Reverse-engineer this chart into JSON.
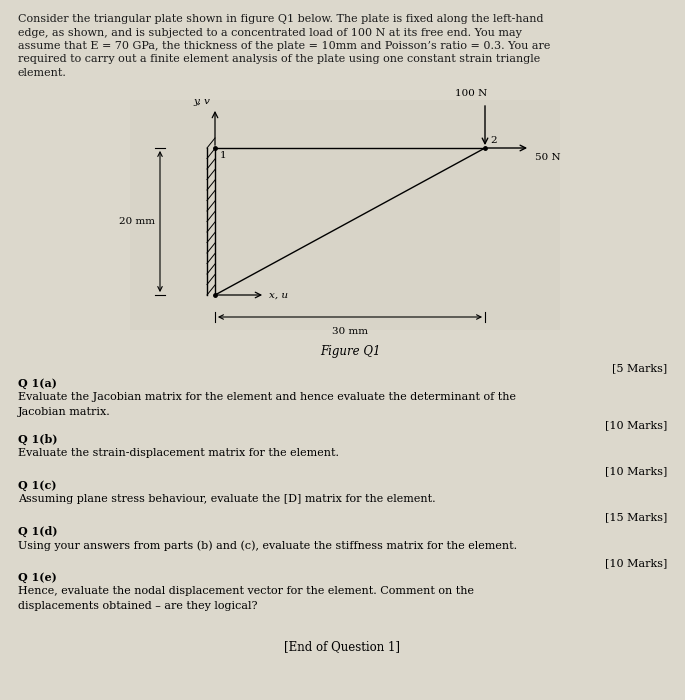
{
  "bg_color": "#dcd8cc",
  "fig_box_color": "#e8e4dc",
  "text_color": "#1a1a1a",
  "intro_text_lines": [
    "Consider the triangular plate shown in figure Q1 below. The plate is fixed along the left-hand",
    "edge, as shown, and is subjected to a concentrated load of 100 N at its free end. You may",
    "assume that E = 70 GPa, the thickness of the plate = 10mm and Poisson’s ratio = 0.3. You are",
    "required to carry out a finite element analysis of the plate using one constant strain triangle",
    "element."
  ],
  "figure_label": "Figure Q1",
  "node1_label": "1",
  "node2_label": "2",
  "dim_30": "30 mm",
  "dim_20": "20 mm",
  "axis_x_label": "x, u",
  "axis_y_label": "y, v",
  "force_100": "100 N",
  "force_50": "50 N",
  "marks_5": "[5 Marks]",
  "marks_10a": "[10 Marks]",
  "marks_10b": "[10 Marks]",
  "marks_15": "[15 Marks]",
  "marks_10d": "[10 Marks]",
  "q1a_label": "Q 1(a)",
  "q1a_line1": "Evaluate the Jacobian matrix for the element and hence evaluate the determinant of the",
  "q1a_line2": "Jacobian matrix.",
  "q1b_label": "Q 1(b)",
  "q1b_line1": "Evaluate the strain-displacement matrix for the element.",
  "q1c_label": "Q 1(c)",
  "q1c_line1": "Assuming plane stress behaviour, evaluate the [D] matrix for the element.",
  "q1d_label": "Q 1(d)",
  "q1d_line1": "Using your answers from parts (b) and (c), evaluate the stiffness matrix for the element.",
  "q1e_label": "Q 1(e)",
  "q1e_line1": "Hence, evaluate the nodal displacement vector for the element. Comment on the",
  "q1e_line2": "displacements obtained – are they logical?",
  "end_text": "[End of Question 1]"
}
